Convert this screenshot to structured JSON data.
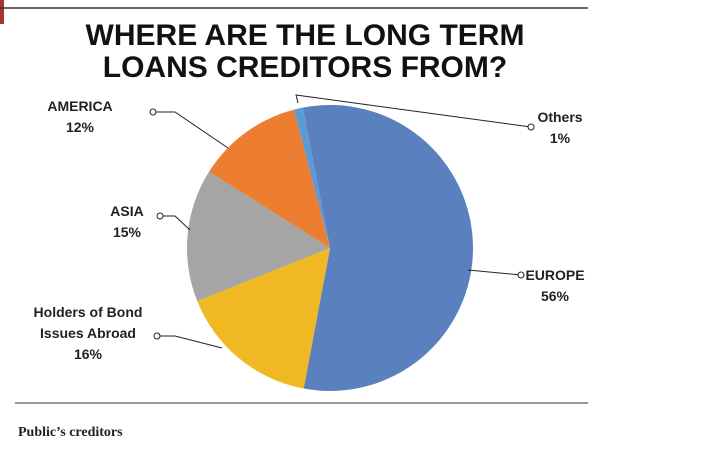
{
  "chart_data": {
    "type": "pie",
    "title": "WHERE ARE THE LONG TERM LOANS CREDITORS FROM?",
    "categories": [
      "EUROPE",
      "Holders of Bond Issues Abroad",
      "ASIA",
      "AMERICA",
      "Others"
    ],
    "values": [
      56,
      16,
      15,
      12,
      1
    ],
    "value_labels": [
      "56%",
      "16%",
      "15%",
      "12%",
      "1%"
    ],
    "colors": [
      "#5b80be",
      "#f0b823",
      "#a5a5a5",
      "#ed7d31",
      "#5b9bd5"
    ]
  },
  "caption": "Public’s creditors"
}
